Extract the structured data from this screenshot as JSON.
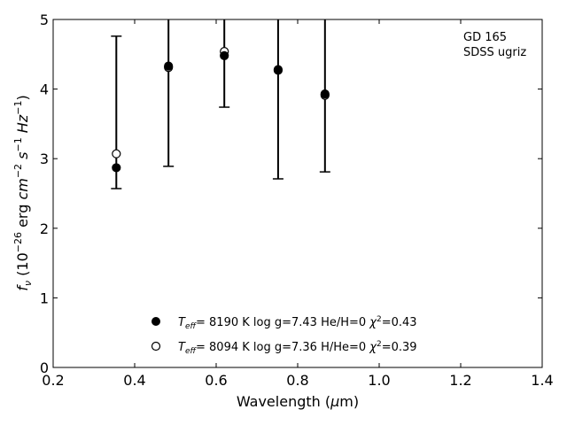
{
  "chart_data": {
    "type": "scatter",
    "xlabel": "Wavelength (μm)",
    "ylabel": "fν (10⁻²⁶ erg cm⁻² s⁻¹ Hz⁻¹)",
    "xlim": [
      0.2,
      1.4
    ],
    "ylim": [
      0,
      5
    ],
    "x_ticks": [
      "0.2",
      "0.4",
      "0.6",
      "0.8",
      "1.0",
      "1.2",
      "1.4"
    ],
    "y_ticks": [
      "0",
      "1",
      "2",
      "3",
      "4",
      "5"
    ],
    "grid": false,
    "annotation": [
      "GD 165",
      "SDSS ugriz"
    ],
    "observed": {
      "x": [
        0.355,
        0.483,
        0.62,
        0.752,
        0.867
      ],
      "err_low": [
        2.57,
        2.89,
        3.74,
        2.71,
        2.81
      ],
      "err_high": [
        4.76,
        5.0,
        5.0,
        5.0,
        5.0
      ]
    },
    "series": [
      {
        "name": "Teff=  8190 K  log g=7.43  He/H=0  χ²=0.43",
        "marker": "filled-circle",
        "x": [
          0.355,
          0.483,
          0.62,
          0.752,
          0.867
        ],
        "y": [
          2.87,
          4.33,
          4.48,
          4.28,
          3.93
        ]
      },
      {
        "name": "Teff=  8094 K  log g=7.36  H/He=0  χ²=0.39",
        "marker": "open-circle",
        "x": [
          0.355,
          0.483,
          0.62,
          0.752,
          0.867
        ],
        "y": [
          3.07,
          4.31,
          4.54,
          4.27,
          3.91
        ]
      }
    ],
    "legend_placement": "lower-center"
  }
}
